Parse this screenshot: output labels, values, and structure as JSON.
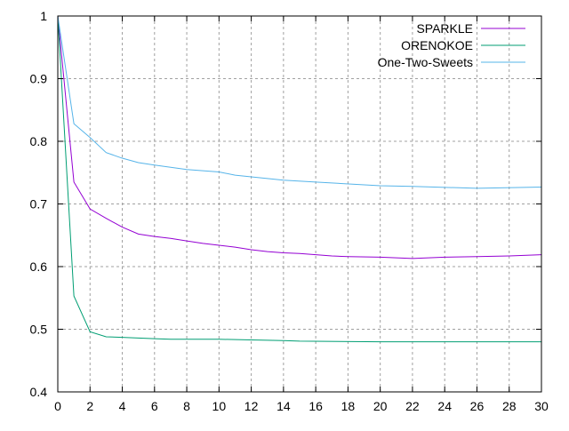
{
  "chart_data": {
    "type": "line",
    "title": "",
    "xlabel": "",
    "ylabel": "",
    "xlim": [
      0,
      30
    ],
    "ylim": [
      0.4,
      1.0
    ],
    "xticks": [
      0,
      2,
      4,
      6,
      8,
      10,
      12,
      14,
      16,
      18,
      20,
      22,
      24,
      26,
      28,
      30
    ],
    "yticks": [
      0.4,
      0.5,
      0.6,
      0.7,
      0.8,
      0.9,
      1
    ],
    "ytick_labels": [
      "0.4",
      "0.5",
      "0.6",
      "0.7",
      "0.8",
      "0.9",
      "1"
    ],
    "grid": true,
    "legend_position": "top-right",
    "series": [
      {
        "name": "SPARKLE",
        "color": "#9400d3",
        "x": [
          0,
          1,
          2,
          3,
          4,
          5,
          6,
          7,
          8,
          9,
          10,
          11,
          12,
          13,
          14,
          15,
          16,
          17,
          18,
          20,
          22,
          24,
          26,
          28,
          30
        ],
        "y": [
          1.0,
          0.735,
          0.692,
          0.677,
          0.663,
          0.652,
          0.648,
          0.645,
          0.641,
          0.637,
          0.634,
          0.631,
          0.627,
          0.624,
          0.622,
          0.621,
          0.619,
          0.617,
          0.616,
          0.615,
          0.613,
          0.615,
          0.616,
          0.617,
          0.619
        ]
      },
      {
        "name": "ORENOKOE",
        "color": "#009e73",
        "x": [
          0,
          1,
          2,
          3,
          4,
          5,
          6,
          7,
          8,
          10,
          12,
          14,
          15,
          20,
          25,
          30
        ],
        "y": [
          1.0,
          0.553,
          0.496,
          0.488,
          0.487,
          0.486,
          0.485,
          0.484,
          0.484,
          0.484,
          0.483,
          0.482,
          0.481,
          0.48,
          0.48,
          0.48
        ]
      },
      {
        "name": "One-Two-Sweets",
        "color": "#56b4e9",
        "x": [
          0,
          1,
          2,
          3,
          4,
          5,
          6,
          8,
          10,
          11,
          14,
          16,
          20,
          22,
          26,
          30
        ],
        "y": [
          1.0,
          0.828,
          0.806,
          0.782,
          0.773,
          0.766,
          0.762,
          0.755,
          0.751,
          0.746,
          0.738,
          0.735,
          0.729,
          0.728,
          0.725,
          0.727
        ]
      }
    ]
  }
}
